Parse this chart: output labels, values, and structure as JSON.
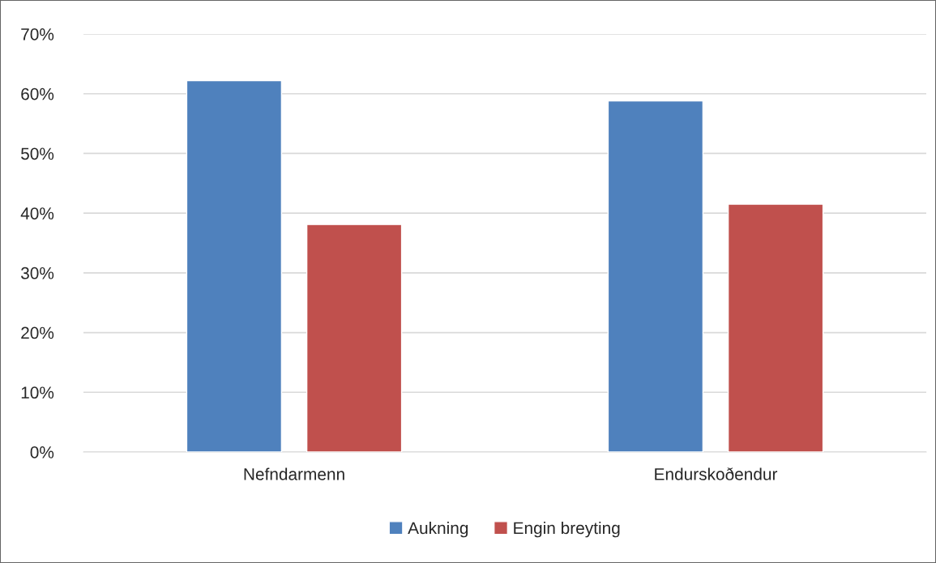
{
  "chart_data": {
    "type": "bar",
    "categories": [
      "Nefndarmenn",
      "Endurskoðendur"
    ],
    "series": [
      {
        "name": "Aukning",
        "color": "#4f81bd",
        "values": [
          62.2,
          58.8
        ]
      },
      {
        "name": "Engin breyting",
        "color": "#c0504d",
        "values": [
          38.1,
          41.5
        ]
      }
    ],
    "ylim": [
      0,
      70
    ],
    "yticks": [
      {
        "value": 0,
        "label": "0%"
      },
      {
        "value": 10,
        "label": "10%"
      },
      {
        "value": 20,
        "label": "20%"
      },
      {
        "value": 30,
        "label": "30%"
      },
      {
        "value": 40,
        "label": "40%"
      },
      {
        "value": 50,
        "label": "50%"
      },
      {
        "value": 60,
        "label": "60%"
      },
      {
        "value": 70,
        "label": "70%"
      }
    ],
    "grid": "y",
    "legend": "bottom"
  }
}
